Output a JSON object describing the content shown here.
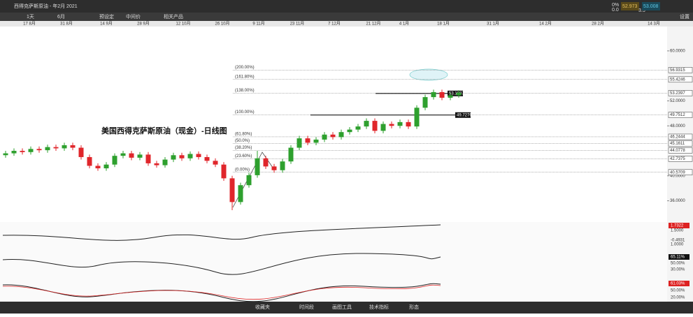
{
  "toolbar": {
    "instrument": "西得克萨斯原油 - 年2月 2021",
    "interval": "1天",
    "range": "6月",
    "buttons": [
      "预设定",
      "中间价",
      "相关产品"
    ],
    "quote": {
      "change": "0%",
      "change_abs": "0.0",
      "bid": "52.973",
      "spread": "3.5",
      "ask": "53.008"
    },
    "settings": "设置"
  },
  "bottombar": [
    "收藏夹",
    "时间段",
    "画图工具",
    "技术指标",
    "形态"
  ],
  "chart_data": {
    "type": "candlestick",
    "title": "美国西得克萨斯原油（现金）-日线图",
    "xlabels": [
      "17 8月",
      "31 8月",
      "14 9月",
      "28 9月",
      "12 10月",
      "26 10月",
      "9 11月",
      "23 11月",
      "7 12月",
      "21 12月",
      "4 1月",
      "18 1月",
      "31 1月",
      "14 2月",
      "28 2月",
      "14 3月"
    ],
    "open": [
      43.3,
      43.6,
      44.0,
      43.8,
      44.3,
      44.1,
      44.6,
      44.4,
      44.9,
      44.5,
      43.0,
      41.6,
      41.2,
      41.8,
      43.2,
      43.6,
      42.9,
      43.4,
      42.0,
      41.7,
      42.6,
      43.3,
      42.8,
      43.5,
      43.0,
      42.4,
      41.8,
      39.6,
      35.8,
      38.5,
      40.1,
      42.8,
      41.5,
      40.9,
      42.3,
      44.5,
      46.0,
      45.3,
      45.8,
      46.6,
      46.2,
      47.0,
      47.4,
      47.9,
      48.8,
      47.2,
      48.3,
      48.0,
      48.6,
      47.9,
      50.9,
      52.6,
      53.4,
      52.5,
      52.9
    ],
    "high": [
      44.0,
      44.4,
      44.4,
      44.7,
      44.7,
      45.0,
      45.0,
      45.3,
      45.3,
      44.9,
      43.4,
      42.0,
      42.2,
      43.6,
      44.0,
      44.0,
      43.8,
      43.8,
      42.4,
      43.0,
      43.7,
      43.7,
      43.9,
      43.9,
      43.4,
      42.8,
      42.2,
      40.0,
      38.9,
      40.5,
      44.0,
      43.2,
      41.9,
      42.7,
      44.9,
      46.4,
      46.4,
      46.2,
      47.0,
      47.0,
      47.4,
      47.8,
      48.3,
      49.2,
      49.2,
      48.7,
      48.7,
      49.0,
      49.0,
      51.3,
      53.0,
      53.8,
      53.8,
      53.3,
      53.7
    ],
    "low": [
      42.9,
      43.2,
      43.4,
      43.4,
      43.7,
      43.7,
      44.0,
      44.0,
      44.1,
      42.6,
      41.2,
      40.8,
      40.8,
      41.4,
      42.8,
      42.5,
      42.5,
      41.6,
      41.3,
      41.3,
      42.2,
      42.4,
      42.4,
      42.6,
      42.0,
      41.4,
      39.2,
      34.5,
      35.4,
      38.1,
      39.7,
      41.1,
      40.5,
      40.5,
      41.9,
      44.1,
      44.9,
      44.9,
      45.4,
      45.8,
      45.8,
      46.6,
      47.0,
      47.5,
      46.8,
      46.8,
      47.6,
      47.6,
      47.5,
      47.5,
      50.5,
      52.2,
      52.1,
      52.1,
      52.5
    ],
    "close": [
      43.6,
      44.0,
      43.8,
      44.3,
      44.1,
      44.6,
      44.4,
      44.9,
      44.5,
      43.0,
      41.6,
      41.2,
      41.8,
      43.2,
      43.6,
      42.9,
      43.4,
      42.0,
      41.7,
      42.6,
      43.3,
      42.8,
      43.5,
      43.0,
      42.4,
      41.8,
      39.6,
      35.8,
      38.5,
      40.1,
      42.8,
      41.5,
      40.9,
      42.3,
      44.5,
      46.0,
      45.3,
      45.8,
      46.6,
      46.2,
      47.0,
      47.4,
      47.9,
      48.8,
      47.2,
      48.3,
      48.0,
      48.6,
      47.9,
      50.9,
      52.6,
      53.4,
      52.5,
      52.9,
      53.3
    ],
    "up_color": "#2ea02e",
    "down_color": "#e0262b",
    "ylim": [
      32.6,
      63.9
    ],
    "yticks": [
      {
        "value": 60,
        "label": "60.0000"
      },
      {
        "value": 52,
        "label": "52.0000"
      },
      {
        "value": 48,
        "label": "48.0000"
      },
      {
        "value": 40,
        "label": "40.0000"
      },
      {
        "value": 36,
        "label": "36.0000"
      }
    ],
    "fib": [
      {
        "label": "(200.00%)",
        "price": 56.9315
      },
      {
        "label": "(161.80%)",
        "price": 55.4246
      },
      {
        "label": "(138.00%)",
        "price": 53.2397
      },
      {
        "label": "(100.00%)",
        "price": 49.7512
      },
      {
        "label": "(61.80%)",
        "price": 46.2444
      },
      {
        "label": "(50.0%)",
        "price": 45.1611
      },
      {
        "label": "(38.20%)",
        "price": 44.0778
      },
      {
        "label": "(23.60%)",
        "price": 42.7375
      },
      {
        "label": "(0.00%)",
        "price": 40.5709
      }
    ],
    "levels": [
      53.1887,
      49.7276
    ]
  },
  "indicators": [
    {
      "labels": [
        "1.7322",
        "1.5000",
        "-0.4931",
        "1.0000"
      ]
    },
    {
      "labels": [
        "65.11%",
        "50.00%",
        "30.00%"
      ]
    },
    {
      "labels": [
        "61.03%",
        "50.00%",
        "20.00%"
      ]
    }
  ]
}
